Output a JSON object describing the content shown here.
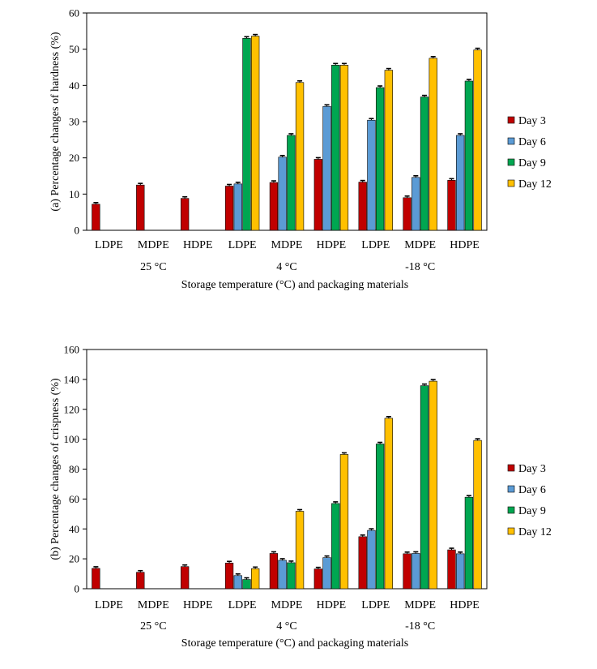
{
  "chart_data": [
    {
      "type": "bar",
      "title": "",
      "ylabel": "(a) Percentage changes of hardness (%)",
      "xlabel": "Storage temperature (°C) and packaging materials",
      "ylim": [
        0,
        60
      ],
      "yticks": [
        0,
        10,
        20,
        30,
        40,
        50,
        60
      ],
      "categories": [
        "LDPE",
        "MDPE",
        "HDPE",
        "LDPE",
        "MDPE",
        "HDPE",
        "LDPE",
        "MDPE",
        "HDPE"
      ],
      "groups": [
        "25 °C",
        "4 °C",
        "-18 °C"
      ],
      "legend_position": "right",
      "series": [
        {
          "name": "Day 3",
          "color": "#C00000",
          "values": [
            7.2,
            12.5,
            8.8,
            12.2,
            13.2,
            19.6,
            13.3,
            9.0,
            13.8
          ]
        },
        {
          "name": "Day 6",
          "color": "#5B9BD5",
          "values": [
            null,
            null,
            null,
            12.8,
            20.2,
            34.2,
            30.4,
            14.6,
            26.2
          ]
        },
        {
          "name": "Day 9",
          "color": "#00A651",
          "values": [
            null,
            null,
            null,
            53.0,
            26.2,
            45.6,
            39.4,
            36.8,
            41.2
          ]
        },
        {
          "name": "Day 12",
          "color": "#FFC000",
          "values": [
            null,
            null,
            null,
            53.6,
            40.8,
            45.6,
            44.2,
            47.5,
            49.8
          ]
        }
      ]
    },
    {
      "type": "bar",
      "title": "",
      "ylabel": "(b) Percentage changes of crispness (%)",
      "xlabel": "Storage temperature (°C) and packaging materials",
      "ylim": [
        0,
        160
      ],
      "yticks": [
        0,
        20,
        40,
        60,
        80,
        100,
        120,
        140,
        160
      ],
      "categories": [
        "LDPE",
        "MDPE",
        "HDPE",
        "LDPE",
        "MDPE",
        "HDPE",
        "LDPE",
        "MDPE",
        "HDPE"
      ],
      "groups": [
        "25 °C",
        "4 °C",
        "-18 °C"
      ],
      "legend_position": "right",
      "series": [
        {
          "name": "Day 3",
          "color": "#C00000",
          "values": [
            13.6,
            11.0,
            14.8,
            17.2,
            23.6,
            13.2,
            34.8,
            23.4,
            26.0
          ]
        },
        {
          "name": "Day 6",
          "color": "#5B9BD5",
          "values": [
            null,
            null,
            null,
            8.8,
            19.0,
            20.8,
            39.0,
            23.6,
            23.4
          ]
        },
        {
          "name": "Day 9",
          "color": "#00A651",
          "values": [
            null,
            null,
            null,
            6.2,
            17.4,
            57.0,
            96.8,
            135.8,
            61.2
          ]
        },
        {
          "name": "Day 12",
          "color": "#FFC000",
          "values": [
            null,
            null,
            null,
            13.4,
            51.8,
            89.8,
            114.0,
            138.8,
            99.2
          ]
        }
      ]
    }
  ]
}
